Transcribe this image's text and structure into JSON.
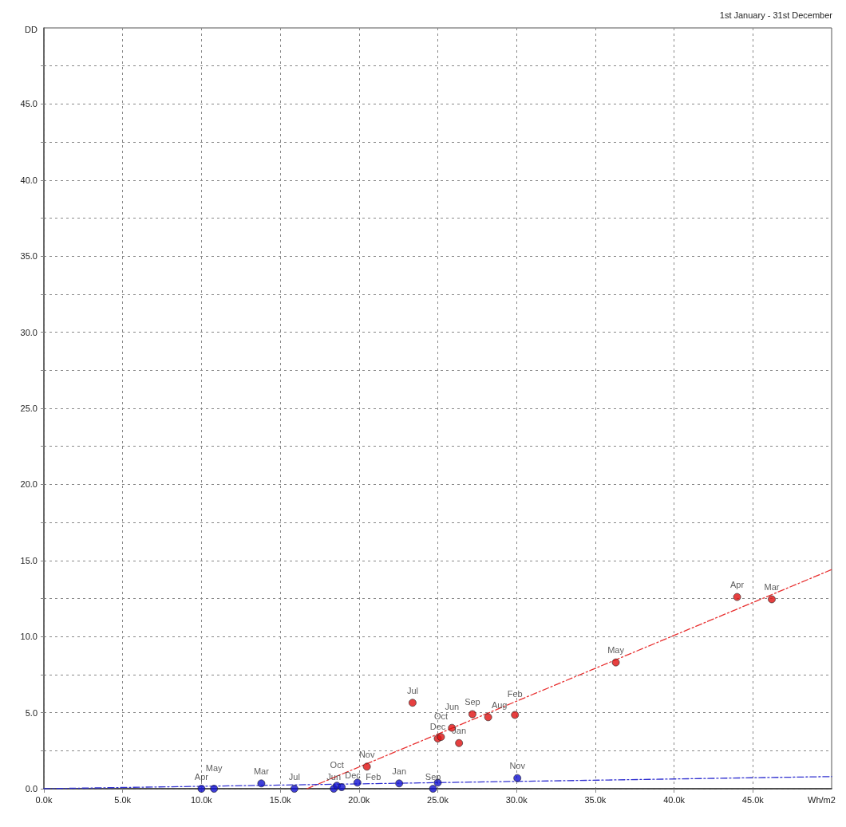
{
  "chart_data": {
    "type": "scatter",
    "title": "1st January - 31st December",
    "xlabel": "Wh/m2",
    "ylabel": "DD",
    "xlim": [
      0,
      50000
    ],
    "ylim": [
      0,
      50
    ],
    "xticks": [
      {
        "value": 0,
        "label": "0.0k"
      },
      {
        "value": 5000,
        "label": "5.0k"
      },
      {
        "value": 10000,
        "label": "10.0k"
      },
      {
        "value": 15000,
        "label": "15.0k"
      },
      {
        "value": 20000,
        "label": "20.0k"
      },
      {
        "value": 25000,
        "label": "25.0k"
      },
      {
        "value": 30000,
        "label": "30.0k"
      },
      {
        "value": 35000,
        "label": "35.0k"
      },
      {
        "value": 40000,
        "label": "40.0k"
      },
      {
        "value": 45000,
        "label": "45.0k"
      }
    ],
    "yticks": [
      {
        "value": 0,
        "label": "0.0"
      },
      {
        "value": 2.5,
        "label": null
      },
      {
        "value": 5,
        "label": "5.0"
      },
      {
        "value": 7.5,
        "label": null
      },
      {
        "value": 10,
        "label": "10.0"
      },
      {
        "value": 12.5,
        "label": null
      },
      {
        "value": 15,
        "label": "15.0"
      },
      {
        "value": 17.5,
        "label": null
      },
      {
        "value": 20,
        "label": "20.0"
      },
      {
        "value": 22.5,
        "label": null
      },
      {
        "value": 25,
        "label": "25.0"
      },
      {
        "value": 27.5,
        "label": null
      },
      {
        "value": 30,
        "label": "30.0"
      },
      {
        "value": 32.5,
        "label": null
      },
      {
        "value": 35,
        "label": "35.0"
      },
      {
        "value": 37.5,
        "label": null
      },
      {
        "value": 40,
        "label": "40.0"
      },
      {
        "value": 42.5,
        "label": null
      },
      {
        "value": 45,
        "label": "45.0"
      },
      {
        "value": 47.5,
        "label": null
      }
    ],
    "grid": true,
    "marker": "circle",
    "series": [
      {
        "color": "#e01010",
        "x": [
          20500,
          23400,
          25000,
          25200,
          26350,
          25900,
          27200,
          28200,
          29900,
          36300,
          44000,
          46200
        ],
        "values": [
          1.45,
          5.65,
          3.3,
          3.4,
          3.0,
          4.0,
          4.9,
          4.7,
          4.85,
          8.3,
          12.6,
          12.45
        ],
        "value_labels": [
          "Nov",
          "Jul",
          "Dec",
          "Oct",
          "Jan",
          "Jun",
          "Sep",
          "Aug",
          "Feb",
          "May",
          "Apr",
          "Mar"
        ]
      },
      {
        "color": "#1010d0",
        "x": [
          10000,
          10800,
          13800,
          15900,
          18400,
          18600,
          18900,
          19900,
          22550,
          24700,
          25000,
          30050
        ],
        "values": [
          0,
          0,
          0.35,
          0,
          0,
          0.2,
          0.1,
          0.4,
          0.35,
          0,
          0.4,
          0.7
        ],
        "value_labels": [
          "Apr",
          "May",
          "Mar",
          "Jul",
          "Jun",
          "Oct",
          "Dec",
          "Feb",
          "Jan",
          "Sep",
          null,
          "Nov"
        ]
      },
      {
        "type": "line",
        "color": "#e83030",
        "line_style": "dashed",
        "marker": "none",
        "x": [
          16700,
          50000
        ],
        "values": [
          0,
          14.4
        ]
      },
      {
        "type": "line",
        "color": "#3030d0",
        "line_style": "dashed",
        "marker": "none",
        "x": [
          0,
          50000
        ],
        "values": [
          0,
          0.8
        ]
      }
    ]
  }
}
